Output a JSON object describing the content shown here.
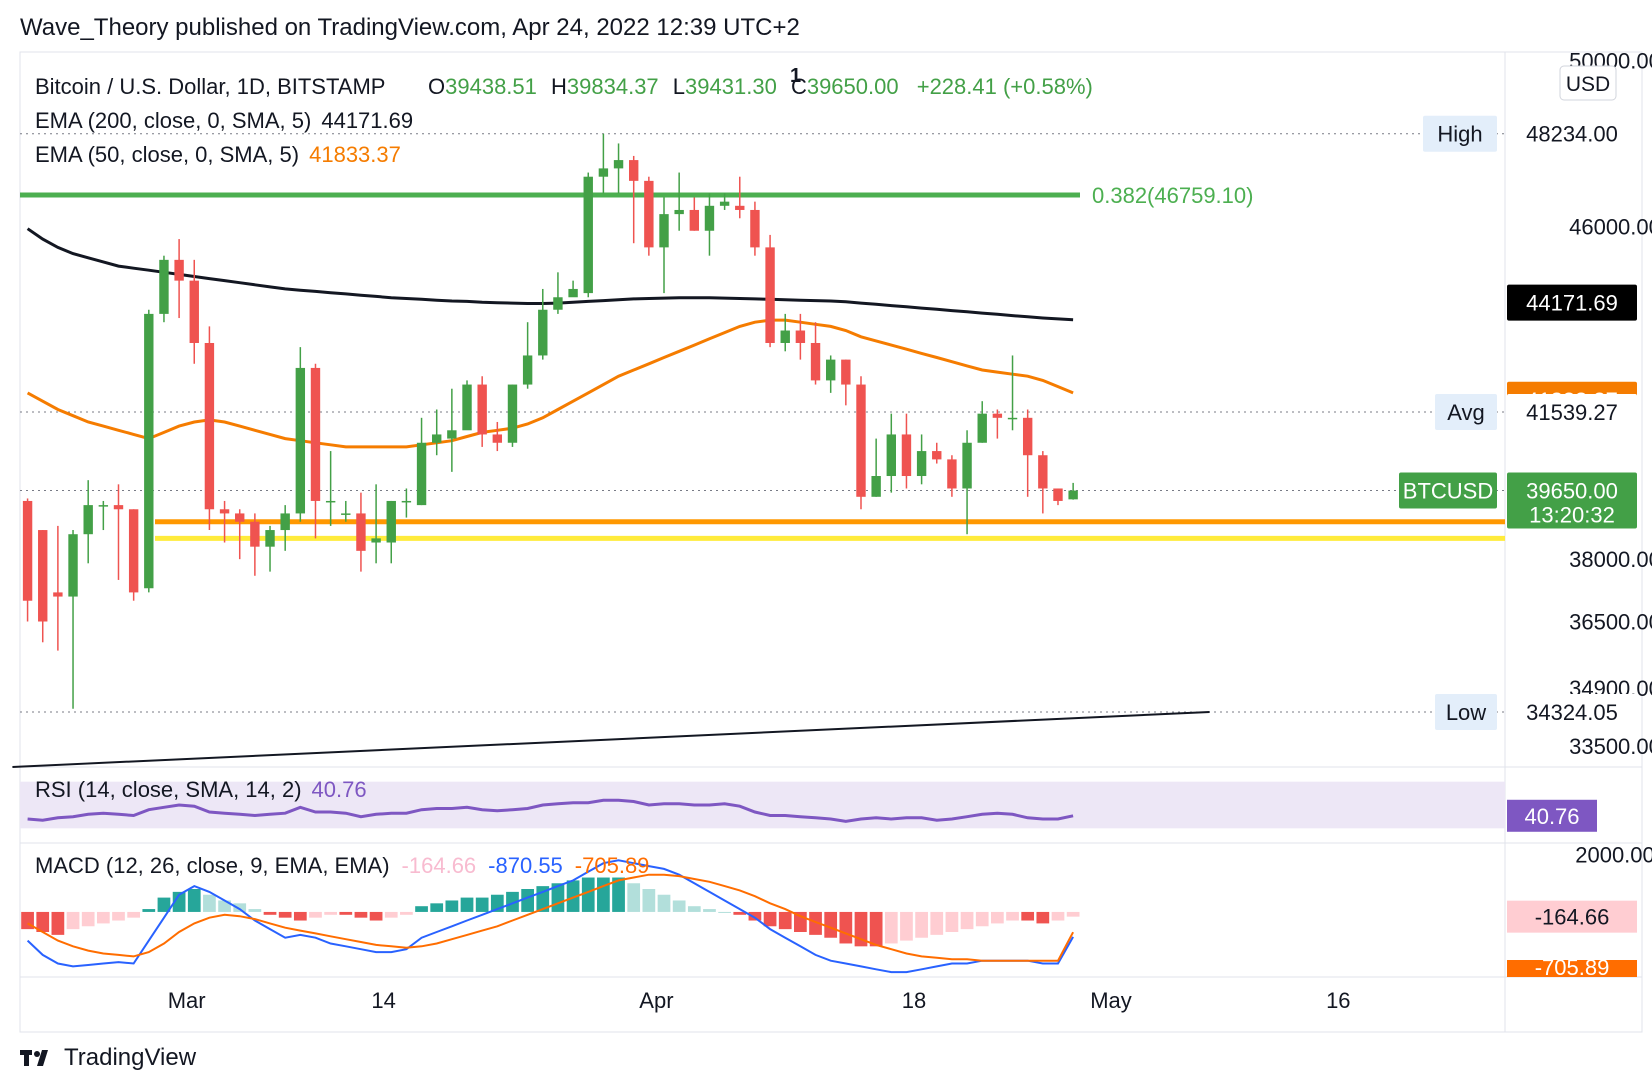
{
  "header": {
    "published": "Wave_Theory published on TradingView.com, Apr 24, 2022 12:39 UTC+2"
  },
  "footer": {
    "brand": "TradingView"
  },
  "legend": {
    "symbol": "Bitcoin / U.S. Dollar, 1D, BITSTAMP",
    "o_label": "O",
    "o": "39438.51",
    "h_label": "H",
    "h": "39834.37",
    "l_label": "L",
    "l": "39431.30",
    "c_label": "C",
    "c": "39650.00",
    "change": "+228.41 (+0.58%)",
    "flag": "1",
    "ema200_label": "EMA (200, close, 0, SMA, 5)",
    "ema200_value": "44171.69",
    "ema50_label": "EMA (50, close, 0, SMA, 5)",
    "ema50_value": "41833.37",
    "rsi_label": "RSI (14, close, SMA, 14, 2)",
    "rsi_value": "40.76",
    "macd_label": "MACD (12, 26, close, 9, EMA, EMA)",
    "macd_hist": "-164.66",
    "macd_line": "-870.55",
    "macd_signal": "-705.89"
  },
  "colors": {
    "up": "#26a69a",
    "up_candle": "#43a047",
    "down": "#ef5350",
    "ema200": "#131722",
    "ema50": "#f57c00",
    "fib": "#4caf50",
    "support1": "#ff9800",
    "support2": "#ffeb3b",
    "rsi": "#7e57c2",
    "rsi_band": "#ede7f6",
    "macd": "#2962ff",
    "signal": "#ff6d00"
  },
  "chart_data": {
    "type": "candlestick",
    "title": "Bitcoin / U.S. Dollar, 1D, BITSTAMP",
    "currency": "USD",
    "ylim": [
      33000,
      50200
    ],
    "y_ticks": [
      "50000.00",
      "46000.00",
      "38000.00",
      "36500.00",
      "34900.00",
      "33500.00"
    ],
    "y_tick_values": [
      50000,
      46000,
      38000,
      36500,
      34900,
      33500
    ],
    "x_ticks": [
      {
        "label": "Mar",
        "day": 11
      },
      {
        "label": "14",
        "day": 24
      },
      {
        "label": "Apr",
        "day": 42
      },
      {
        "label": "18",
        "day": 59
      },
      {
        "label": "May",
        "day": 72
      },
      {
        "label": "16",
        "day": 87
      }
    ],
    "x_days": 98,
    "candles": [
      [
        39400,
        39460,
        37000,
        36500
      ],
      [
        38700,
        38700,
        36500,
        36000
      ],
      [
        37200,
        38800,
        37100,
        35800
      ],
      [
        37100,
        38700,
        38600,
        34400
      ],
      [
        38600,
        39900,
        39300,
        37900
      ],
      [
        39300,
        39400,
        39300,
        38700
      ],
      [
        39300,
        39800,
        39200,
        37500
      ],
      [
        39200,
        39200,
        37200,
        37000
      ],
      [
        37300,
        44000,
        43900,
        37200
      ],
      [
        43900,
        45300,
        45200,
        43700
      ],
      [
        45200,
        45700,
        44700,
        43800
      ],
      [
        44700,
        45200,
        43200,
        42700
      ],
      [
        43200,
        43600,
        39200,
        38700
      ],
      [
        39200,
        39400,
        39100,
        38400
      ],
      [
        39100,
        39200,
        38900,
        38000
      ],
      [
        38900,
        39100,
        38300,
        37600
      ],
      [
        38300,
        38800,
        38700,
        37700
      ],
      [
        38700,
        39300,
        39100,
        38200
      ],
      [
        39100,
        43100,
        42600,
        38900
      ],
      [
        42600,
        42700,
        39400,
        38500
      ],
      [
        39400,
        40600,
        39400,
        38800
      ],
      [
        39100,
        39400,
        39100,
        38900
      ],
      [
        39100,
        39600,
        38200,
        37700
      ],
      [
        38400,
        39800,
        38500,
        37900
      ],
      [
        38400,
        39400,
        39400,
        37900
      ],
      [
        39400,
        39700,
        39400,
        39000
      ],
      [
        39300,
        41400,
        40800,
        39300
      ],
      [
        40800,
        41600,
        41000,
        40500
      ],
      [
        40900,
        42100,
        41100,
        40100
      ],
      [
        41100,
        42300,
        42200,
        41300
      ],
      [
        42200,
        42400,
        41000,
        40700
      ],
      [
        41000,
        41300,
        40800,
        40600
      ],
      [
        40800,
        42200,
        42200,
        40700
      ],
      [
        42200,
        43700,
        42900,
        42100
      ],
      [
        42900,
        44500,
        44000,
        42800
      ],
      [
        44000,
        44900,
        44300,
        43900
      ],
      [
        44300,
        44700,
        44500,
        44400
      ],
      [
        44400,
        47300,
        47200,
        44300
      ],
      [
        47200,
        48234,
        47400,
        46800
      ],
      [
        47400,
        48000,
        47600,
        46800
      ],
      [
        47600,
        47700,
        47100,
        45600
      ],
      [
        47100,
        47200,
        45500,
        45300
      ],
      [
        45500,
        46700,
        46300,
        44400
      ],
      [
        46300,
        47300,
        46400,
        45900
      ],
      [
        46400,
        46700,
        45900,
        45900
      ],
      [
        45900,
        46800,
        46500,
        45300
      ],
      [
        46500,
        46800,
        46600,
        46400
      ],
      [
        46500,
        47200,
        46400,
        46200
      ],
      [
        46400,
        46600,
        45500,
        45300
      ],
      [
        45500,
        45800,
        43200,
        43100
      ],
      [
        43200,
        43900,
        43500,
        43000
      ],
      [
        43500,
        43900,
        43200,
        42800
      ],
      [
        43200,
        43700,
        42300,
        42200
      ],
      [
        42300,
        42900,
        42800,
        42000
      ],
      [
        42800,
        42800,
        42200,
        41700
      ],
      [
        42200,
        42400,
        39500,
        39200
      ],
      [
        39500,
        40900,
        40000,
        39500
      ],
      [
        40000,
        41500,
        41000,
        39600
      ],
      [
        41000,
        41500,
        40000,
        39700
      ],
      [
        40000,
        41000,
        40600,
        39800
      ],
      [
        40600,
        40800,
        40400,
        40300
      ],
      [
        40400,
        40500,
        39700,
        39500
      ],
      [
        39700,
        41100,
        40800,
        38600
      ],
      [
        40800,
        41800,
        41500,
        40800
      ],
      [
        41500,
        41600,
        41400,
        40900
      ],
      [
        41400,
        42900,
        41400,
        41100
      ],
      [
        41400,
        41600,
        40500,
        39500
      ],
      [
        40500,
        40600,
        39700,
        39100
      ],
      [
        39700,
        39700,
        39400,
        39300
      ],
      [
        39438.51,
        39834.37,
        39650,
        39431.3
      ]
    ],
    "ema200": [
      45950,
      45700,
      45500,
      45350,
      45250,
      45150,
      45050,
      45000,
      44950,
      44900,
      44850,
      44800,
      44750,
      44700,
      44650,
      44600,
      44550,
      44500,
      44470,
      44440,
      44410,
      44380,
      44350,
      44320,
      44290,
      44270,
      44250,
      44230,
      44210,
      44200,
      44180,
      44170,
      44160,
      44150,
      44150,
      44160,
      44180,
      44200,
      44220,
      44240,
      44260,
      44270,
      44280,
      44290,
      44290,
      44290,
      44280,
      44270,
      44260,
      44250,
      44240,
      44230,
      44220,
      44210,
      44190,
      44160,
      44130,
      44100,
      44070,
      44040,
      44010,
      43980,
      43950,
      43920,
      43890,
      43860,
      43830,
      43800,
      43780,
      43760
    ],
    "ema50": [
      42000,
      41800,
      41600,
      41450,
      41300,
      41200,
      41100,
      41000,
      40900,
      41050,
      41200,
      41300,
      41350,
      41300,
      41200,
      41100,
      41000,
      40900,
      40850,
      40800,
      40750,
      40700,
      40700,
      40700,
      40700,
      40700,
      40750,
      40800,
      40850,
      40950,
      41050,
      41100,
      41150,
      41250,
      41400,
      41600,
      41800,
      42000,
      42200,
      42400,
      42550,
      42700,
      42850,
      43000,
      43150,
      43300,
      43450,
      43600,
      43700,
      43750,
      43750,
      43700,
      43650,
      43600,
      43500,
      43350,
      43250,
      43150,
      43050,
      42950,
      42850,
      42750,
      42650,
      42550,
      42500,
      42450,
      42400,
      42300,
      42150,
      42000
    ],
    "levels": {
      "high": {
        "label": "High",
        "value": "48234.00",
        "y": 48234
      },
      "avg": {
        "label": "Avg",
        "value": "41539.27",
        "y": 41539.27
      },
      "low": {
        "label": "Low",
        "value": "34324.05",
        "y": 34324.05
      },
      "current": {
        "label": "BTCUSD",
        "value": "39650.00",
        "countdown": "13:20:32",
        "y": 39650
      },
      "ema200_tag": {
        "value": "44171.69",
        "y": 44171.69
      },
      "ema50_tag": {
        "value": "41833.37",
        "y": 41833.37
      },
      "fib": {
        "label": "0.382(46759.10)",
        "y": 46759.1
      },
      "support_orange": 38900,
      "support_yellow": 38500
    },
    "trendline": {
      "from": [
        -1,
        33000
      ],
      "to": [
        78,
        34324
      ]
    },
    "rsi": {
      "ylim": [
        20,
        80
      ],
      "band": [
        30,
        70
      ],
      "values": [
        38,
        37,
        39,
        40,
        42,
        43,
        42,
        41,
        46,
        48,
        50,
        49,
        44,
        43,
        42,
        41,
        42,
        43,
        48,
        44,
        44,
        43,
        40,
        42,
        43,
        43,
        46,
        47,
        47,
        48,
        46,
        45,
        46,
        47,
        50,
        51,
        52,
        52,
        54,
        54,
        53,
        50,
        51,
        51,
        50,
        50,
        51,
        49,
        44,
        41,
        41,
        40,
        39,
        38,
        36,
        38,
        39,
        38,
        39,
        39,
        37,
        38,
        40,
        42,
        43,
        42,
        39,
        38,
        38,
        40.76
      ]
    },
    "macd": {
      "ylim": [
        -2200,
        2300
      ],
      "y_tick": "2000.00",
      "y_tick_value": 2000,
      "hist": [
        -600,
        -700,
        -800,
        -600,
        -500,
        -400,
        -300,
        -200,
        100,
        500,
        700,
        800,
        600,
        400,
        300,
        100,
        -100,
        -200,
        -300,
        -200,
        -100,
        -100,
        -200,
        -300,
        -200,
        -100,
        200,
        300,
        400,
        500,
        500,
        600,
        700,
        800,
        900,
        1000,
        1100,
        1200,
        1200,
        1200,
        1000,
        800,
        600,
        400,
        200,
        100,
        0,
        -100,
        -300,
        -500,
        -600,
        -700,
        -800,
        -900,
        -1100,
        -1200,
        -1200,
        -1100,
        -1000,
        -900,
        -800,
        -700,
        -600,
        -500,
        -400,
        -300,
        -300,
        -400,
        -300,
        -164.66
      ],
      "macd_line": [
        -1000,
        -1500,
        -1800,
        -1900,
        -1850,
        -1800,
        -1750,
        -1800,
        -1000,
        -200,
        600,
        900,
        700,
        400,
        100,
        -300,
        -600,
        -900,
        -800,
        -900,
        -1100,
        -1200,
        -1300,
        -1400,
        -1400,
        -1300,
        -900,
        -700,
        -500,
        -300,
        -100,
        100,
        300,
        500,
        700,
        900,
        1100,
        1400,
        1700,
        1800,
        1700,
        1600,
        1500,
        1300,
        1000,
        700,
        400,
        100,
        -200,
        -600,
        -900,
        -1200,
        -1500,
        -1700,
        -1800,
        -1900,
        -2000,
        -2100,
        -2100,
        -2000,
        -1900,
        -1800,
        -1800,
        -1700,
        -1700,
        -1700,
        -1700,
        -1800,
        -1800,
        -870.55
      ],
      "signal_line": [
        -400,
        -700,
        -1000,
        -1200,
        -1350,
        -1450,
        -1500,
        -1550,
        -1400,
        -1100,
        -700,
        -400,
        -200,
        -100,
        -150,
        -250,
        -400,
        -550,
        -650,
        -750,
        -850,
        -950,
        -1050,
        -1150,
        -1200,
        -1250,
        -1200,
        -1100,
        -950,
        -800,
        -650,
        -500,
        -300,
        -100,
        100,
        300,
        500,
        700,
        900,
        1100,
        1200,
        1300,
        1300,
        1250,
        1150,
        1050,
        900,
        750,
        550,
        300,
        100,
        -150,
        -350,
        -550,
        -750,
        -950,
        -1150,
        -1300,
        -1450,
        -1550,
        -1600,
        -1650,
        -1650,
        -1700,
        -1700,
        -1700,
        -1700,
        -1700,
        -1700,
        -705.89
      ]
    }
  }
}
